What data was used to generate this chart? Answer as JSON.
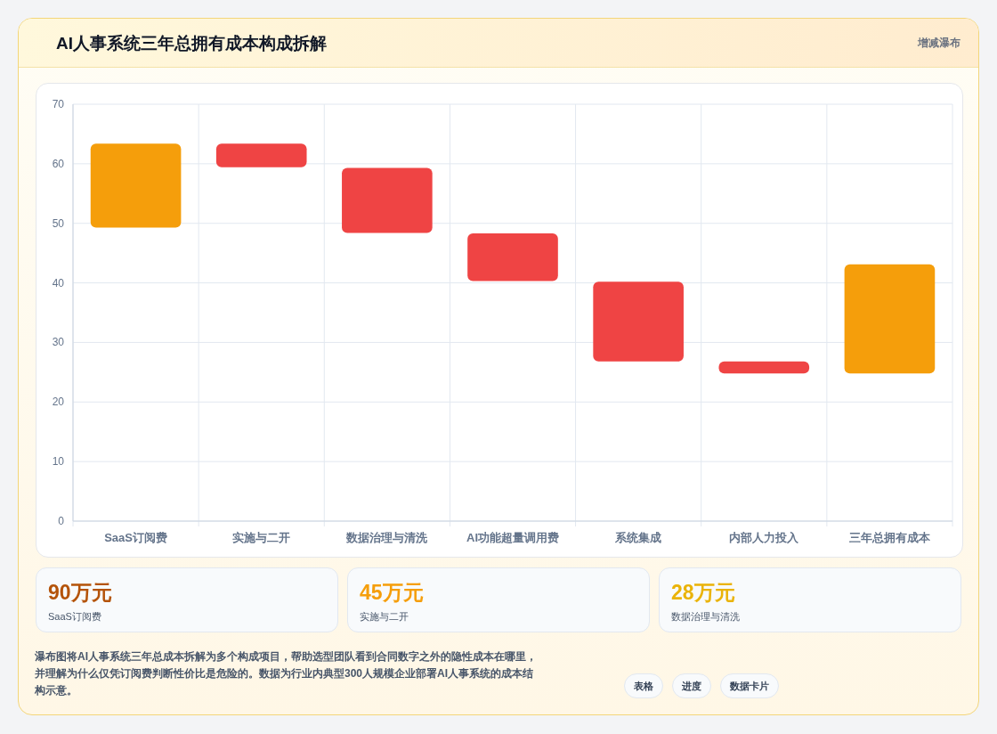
{
  "chart_data": {
    "type": "bar",
    "title": "AI人事系统三年总拥有成本构成拆解",
    "categories": [
      "SaaS订阅费",
      "实施与二开",
      "数据治理与清洗",
      "AI功能超量调用费",
      "系统集成",
      "内部人力投入",
      "三年总拥有成本"
    ],
    "values": [
      14.1,
      4.0,
      10.9,
      8.0,
      13.4,
      2.0,
      18.3
    ],
    "base": [
      49.3,
      59.4,
      48.4,
      40.3,
      26.8,
      24.8,
      24.8
    ],
    "colors": [
      "#f59e0b",
      "#ef4444",
      "#ef4444",
      "#ef4444",
      "#ef4444",
      "#ef4444",
      "#f59e0b"
    ],
    "ylim": [
      0,
      70
    ],
    "yticks": [
      0,
      10,
      20,
      30,
      40,
      50,
      60,
      70
    ],
    "grid": true,
    "annotations": [
      "增减瀑布",
      "90万元",
      "SaaS订阅费",
      "45万元",
      "实施与二开",
      "28万元",
      "数据治理与清洗",
      "瀑布图将AI人事系统三年总成本拆解为多个构成项目，帮助选型团队看到合同数字之外的隐性成本在哪里，并理解为什么仅凭订阅费判断性价比是危险的。数据为行业内典型300人规模企业部署AI人事系统的成本结构示意。",
      "表格",
      "进度",
      "数据卡片"
    ]
  }
}
